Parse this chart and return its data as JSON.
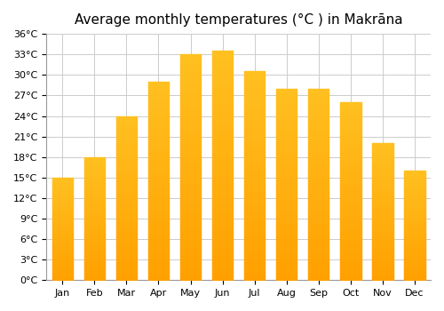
{
  "title": "Average monthly temperatures (°C ) in Makrāna",
  "months": [
    "Jan",
    "Feb",
    "Mar",
    "Apr",
    "May",
    "Jun",
    "Jul",
    "Aug",
    "Sep",
    "Oct",
    "Nov",
    "Dec"
  ],
  "values": [
    15,
    18,
    24,
    29,
    33,
    33.5,
    30.5,
    28,
    28,
    26,
    20,
    16
  ],
  "ylim": [
    0,
    36
  ],
  "ytick_step": 3,
  "bar_color_top": "#FFC020",
  "bar_color_bottom": "#FFA000",
  "background_color": "#ffffff",
  "grid_color": "#cccccc",
  "title_fontsize": 11
}
